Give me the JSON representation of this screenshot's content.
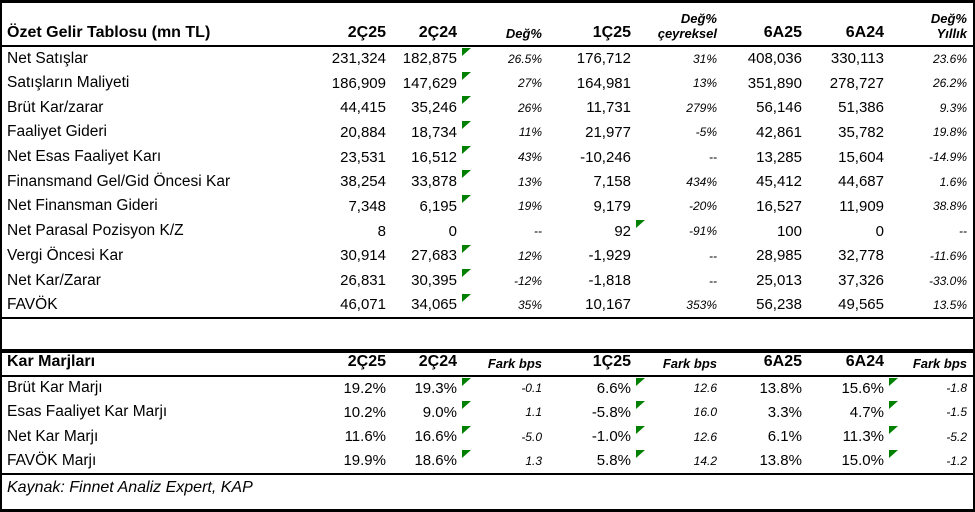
{
  "source_note": "Kaynak: Finnet Analiz Expert, KAP",
  "colors": {
    "text": "#000000",
    "background": "#ffffff",
    "border": "#000000",
    "flag_green": "#008000"
  },
  "income_table": {
    "title": "Özet Gelir Tablosu (mn TL)",
    "columns": [
      {
        "label": "2Ç25",
        "italic": false
      },
      {
        "label": "2Ç24",
        "italic": false
      },
      {
        "label": "Değ%",
        "italic": true
      },
      {
        "label": "1Ç25",
        "italic": false
      },
      {
        "label": "Değ%\nçeyreksel",
        "italic": true
      },
      {
        "label": "6A25",
        "italic": false
      },
      {
        "label": "6A24",
        "italic": false
      },
      {
        "label": "Değ%\nYıllık",
        "italic": true
      }
    ],
    "italic_value_cols": [
      2,
      4,
      7
    ],
    "rows": [
      {
        "label": "Net Satışlar",
        "values": [
          "231,324",
          "182,875",
          "26.5%",
          "176,712",
          "31%",
          "408,036",
          "330,113",
          "23.6%"
        ],
        "flags": [
          2
        ]
      },
      {
        "label": "Satışların Maliyeti",
        "values": [
          "186,909",
          "147,629",
          "27%",
          "164,981",
          "13%",
          "351,890",
          "278,727",
          "26.2%"
        ],
        "flags": [
          2
        ]
      },
      {
        "label": "Brüt Kar/zarar",
        "values": [
          "44,415",
          "35,246",
          "26%",
          "11,731",
          "279%",
          "56,146",
          "51,386",
          "9.3%"
        ],
        "flags": [
          2
        ]
      },
      {
        "label": "Faaliyet Gideri",
        "values": [
          "20,884",
          "18,734",
          "11%",
          "21,977",
          "-5%",
          "42,861",
          "35,782",
          "19.8%"
        ],
        "flags": [
          2
        ]
      },
      {
        "label": "Net Esas Faaliyet Karı",
        "values": [
          "23,531",
          "16,512",
          "43%",
          "-10,246",
          "--",
          "13,285",
          "15,604",
          "-14.9%"
        ],
        "flags": [
          2
        ]
      },
      {
        "label": "Finansmand Gel/Gid Öncesi Kar",
        "values": [
          "38,254",
          "33,878",
          "13%",
          "7,158",
          "434%",
          "45,412",
          "44,687",
          "1.6%"
        ],
        "flags": [
          2
        ]
      },
      {
        "label": "Net Finansman Gideri",
        "values": [
          "7,348",
          "6,195",
          "19%",
          "9,179",
          "-20%",
          "16,527",
          "11,909",
          "38.8%"
        ],
        "flags": [
          2
        ]
      },
      {
        "label": "Net Parasal Pozisyon K/Z",
        "values": [
          "8",
          "0",
          "--",
          "92",
          "-91%",
          "100",
          "0",
          "--"
        ],
        "flags": [
          4
        ]
      },
      {
        "label": "Vergi Öncesi Kar",
        "values": [
          "30,914",
          "27,683",
          "12%",
          "-1,929",
          "--",
          "28,985",
          "32,778",
          "-11.6%"
        ],
        "flags": [
          2
        ]
      },
      {
        "label": "Net Kar/Zarar",
        "values": [
          "26,831",
          "30,395",
          "-12%",
          "-1,818",
          "--",
          "25,013",
          "37,326",
          "-33.0%"
        ],
        "flags": [
          2
        ]
      },
      {
        "label": "FAVÖK",
        "values": [
          "46,071",
          "34,065",
          "35%",
          "10,167",
          "353%",
          "56,238",
          "49,565",
          "13.5%"
        ],
        "flags": [
          2
        ]
      }
    ]
  },
  "margins_table": {
    "title": "Kar Marjları",
    "columns": [
      {
        "label": "2Ç25",
        "italic": false
      },
      {
        "label": "2Ç24",
        "italic": false
      },
      {
        "label": "Fark bps",
        "italic": true
      },
      {
        "label": "1Ç25",
        "italic": false
      },
      {
        "label": "Fark bps",
        "italic": true
      },
      {
        "label": "6A25",
        "italic": false
      },
      {
        "label": "6A24",
        "italic": false
      },
      {
        "label": "Fark bps",
        "italic": true
      }
    ],
    "italic_value_cols": [
      2,
      4,
      7
    ],
    "rows": [
      {
        "label": "Brüt Kar Marjı",
        "values": [
          "19.2%",
          "19.3%",
          "-0.1",
          "6.6%",
          "12.6",
          "13.8%",
          "15.6%",
          "-1.8"
        ],
        "flags": [
          2,
          4,
          7
        ]
      },
      {
        "label": "Esas Faaliyet Kar Marjı",
        "values": [
          "10.2%",
          "9.0%",
          "1.1",
          "-5.8%",
          "16.0",
          "3.3%",
          "4.7%",
          "-1.5"
        ],
        "flags": [
          2,
          4,
          7
        ]
      },
      {
        "label": "Net Kar Marjı",
        "values": [
          "11.6%",
          "16.6%",
          "-5.0",
          "-1.0%",
          "12.6",
          "6.1%",
          "11.3%",
          "-5.2"
        ],
        "flags": [
          2,
          4,
          7
        ]
      },
      {
        "label": "FAVÖK Marjı",
        "values": [
          "19.9%",
          "18.6%",
          "1.3",
          "5.8%",
          "14.2",
          "13.8%",
          "15.0%",
          "-1.2"
        ],
        "flags": [
          2,
          4,
          7
        ]
      }
    ]
  }
}
